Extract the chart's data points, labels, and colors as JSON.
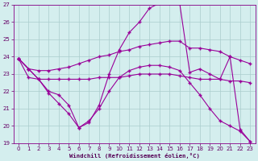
{
  "xlabel": "Windchill (Refroidissement éolien,°C)",
  "bg_color": "#d4eeee",
  "grid_color": "#aaddcc",
  "line_color": "#990099",
  "xlim": [
    -0.5,
    23.5
  ],
  "ylim": [
    19,
    27
  ],
  "yticks": [
    19,
    20,
    21,
    22,
    23,
    24,
    25,
    26,
    27
  ],
  "xticks": [
    0,
    1,
    2,
    3,
    4,
    5,
    6,
    7,
    8,
    9,
    10,
    11,
    12,
    13,
    14,
    15,
    16,
    17,
    18,
    19,
    20,
    21,
    22,
    23
  ],
  "series": [
    {
      "x": [
        0,
        1,
        2,
        3,
        4,
        5,
        6,
        7,
        8,
        9,
        10,
        11,
        12,
        13,
        14,
        15,
        16,
        17,
        18,
        19,
        20,
        21,
        22,
        23
      ],
      "y": [
        23.9,
        23.3,
        23.2,
        23.2,
        23.3,
        23.4,
        23.6,
        23.8,
        24.0,
        24.1,
        24.3,
        24.4,
        24.6,
        24.7,
        24.8,
        24.9,
        24.9,
        24.5,
        24.5,
        24.4,
        24.3,
        24.0,
        23.8,
        23.6
      ]
    },
    {
      "x": [
        0,
        1,
        2,
        3,
        4,
        5,
        6,
        7,
        8,
        9,
        10,
        11,
        12,
        13,
        14,
        15,
        16,
        17,
        18,
        19,
        20,
        21,
        22,
        23
      ],
      "y": [
        23.9,
        22.8,
        22.7,
        22.7,
        22.7,
        22.7,
        22.7,
        22.7,
        22.8,
        22.8,
        22.8,
        22.9,
        23.0,
        23.0,
        23.0,
        23.0,
        22.9,
        22.8,
        22.7,
        22.7,
        22.7,
        22.6,
        22.6,
        22.5
      ]
    },
    {
      "x": [
        0,
        1,
        2,
        3,
        4,
        5,
        6,
        7,
        8,
        9,
        10,
        11,
        12,
        13,
        14,
        15,
        16,
        17,
        18,
        19,
        20,
        21,
        22,
        23
      ],
      "y": [
        23.9,
        23.3,
        22.7,
        22.0,
        21.8,
        21.2,
        19.9,
        20.2,
        21.2,
        23.0,
        24.4,
        25.4,
        26.0,
        26.8,
        27.1,
        27.1,
        27.1,
        23.1,
        23.3,
        23.0,
        22.7,
        24.0,
        19.8,
        19.1
      ]
    },
    {
      "x": [
        0,
        1,
        2,
        3,
        4,
        5,
        6,
        7,
        8,
        9,
        10,
        11,
        12,
        13,
        14,
        15,
        16,
        17,
        18,
        19,
        20,
        21,
        22,
        23
      ],
      "y": [
        23.9,
        23.3,
        22.7,
        21.9,
        21.3,
        20.7,
        19.9,
        20.3,
        21.0,
        22.0,
        22.8,
        23.2,
        23.4,
        23.5,
        23.5,
        23.4,
        23.2,
        22.5,
        21.8,
        21.0,
        20.3,
        20.0,
        19.7,
        19.1
      ]
    }
  ]
}
